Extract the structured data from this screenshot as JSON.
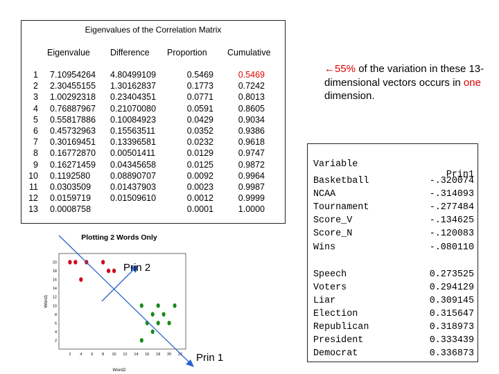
{
  "eigen_table": {
    "title": "Eigenvalues of the Correlation Matrix",
    "headers": [
      "Eigenvalue",
      "Difference",
      "Proportion",
      "Cumulative"
    ],
    "rows": [
      {
        "idx": "1",
        "eig": "7.10954264",
        "diff": "4.80499109",
        "prop": "0.5469",
        "cum": "0.5469"
      },
      {
        "idx": "2",
        "eig": "2.30455155",
        "diff": "1.30162837",
        "prop": "0.1773",
        "cum": "0.7242"
      },
      {
        "idx": "3",
        "eig": "1.00292318",
        "diff": "0.23404351",
        "prop": "0.0771",
        "cum": "0.8013"
      },
      {
        "idx": "4",
        "eig": "0.76887967",
        "diff": "0.21070080",
        "prop": "0.0591",
        "cum": "0.8605"
      },
      {
        "idx": "5",
        "eig": "0.55817886",
        "diff": "0.10084923",
        "prop": "0.0429",
        "cum": "0.9034"
      },
      {
        "idx": "6",
        "eig": "0.45732963",
        "diff": "0.15563511",
        "prop": "0.0352",
        "cum": "0.9386"
      },
      {
        "idx": "7",
        "eig": "0.30169451",
        "diff": "0.13396581",
        "prop": "0.0232",
        "cum": "0.9618"
      },
      {
        "idx": "8",
        "eig": "0.16772870",
        "diff": "0.00501411",
        "prop": "0.0129",
        "cum": "0.9747"
      },
      {
        "idx": "9",
        "eig": "0.16271459",
        "diff": "0.04345658",
        "prop": "0.0125",
        "cum": "0.9872"
      },
      {
        "idx": "10",
        "eig": "0.1192580",
        "diff": "0.08890707",
        "prop": "0.0092",
        "cum": "0.9964"
      },
      {
        "idx": "11",
        "eig": "0.0303509",
        "diff": "0.01437903",
        "prop": "0.0023",
        "cum": "0.9987"
      },
      {
        "idx": "12",
        "eig": "0.0159719",
        "diff": "0.01509610",
        "prop": "0.0012",
        "cum": "0.9999"
      },
      {
        "idx": "13",
        "eig": "0.0008758",
        "diff": "",
        "prop": "0.0001",
        "cum": "1.0000"
      }
    ],
    "highlight_color": "#e00000"
  },
  "annotation": {
    "arrow": "←",
    "percent": "55%",
    "text_1": " of the variation in these 13-dimensional vectors occurs in ",
    "emphasis": "one",
    "text_2": " dimension."
  },
  "loadings": {
    "header_variable": "Variable",
    "header_component": "Prin1",
    "group1": [
      {
        "name": "Basketball",
        "value": "-.320074"
      },
      {
        "name": "NCAA",
        "value": "-.314093"
      },
      {
        "name": "Tournament",
        "value": "-.277484"
      },
      {
        "name": "Score_V",
        "value": "-.134625"
      },
      {
        "name": "Score_N",
        "value": "-.120083"
      },
      {
        "name": "Wins",
        "value": "-.080110"
      }
    ],
    "group2": [
      {
        "name": "Speech",
        "value": "0.273525"
      },
      {
        "name": "Voters",
        "value": "0.294129"
      },
      {
        "name": "Liar",
        "value": "0.309145"
      },
      {
        "name": "Election",
        "value": "0.315647"
      },
      {
        "name": "Republican",
        "value": "0.318973"
      },
      {
        "name": "President",
        "value": "0.333439"
      },
      {
        "name": "Democrat",
        "value": "0.336873"
      }
    ]
  },
  "scatter": {
    "title": "Plotting 2 Words Only",
    "xlabel": "Word2",
    "ylabel": "Word1",
    "x_ticks": [
      "2",
      "4",
      "6",
      "8",
      "10",
      "12",
      "14",
      "16",
      "18",
      "20",
      "22"
    ],
    "y_ticks": [
      "2",
      "4",
      "6",
      "8",
      "10",
      "12",
      "14",
      "16",
      "18",
      "20"
    ],
    "label_prin1": "Prin 1",
    "label_prin2": "Prin 2",
    "red_color": "#d0021b",
    "green_color": "#1a8a1a",
    "red_points": [
      [
        2,
        20
      ],
      [
        3,
        20
      ],
      [
        5,
        20
      ],
      [
        8,
        20
      ],
      [
        9,
        18
      ],
      [
        10,
        18
      ],
      [
        4,
        16
      ]
    ],
    "green_points": [
      [
        15,
        10
      ],
      [
        18,
        10
      ],
      [
        21,
        10
      ],
      [
        17,
        8
      ],
      [
        19,
        8
      ],
      [
        16,
        6
      ],
      [
        18,
        6
      ],
      [
        20,
        6
      ],
      [
        17,
        4
      ],
      [
        15,
        2
      ]
    ]
  }
}
